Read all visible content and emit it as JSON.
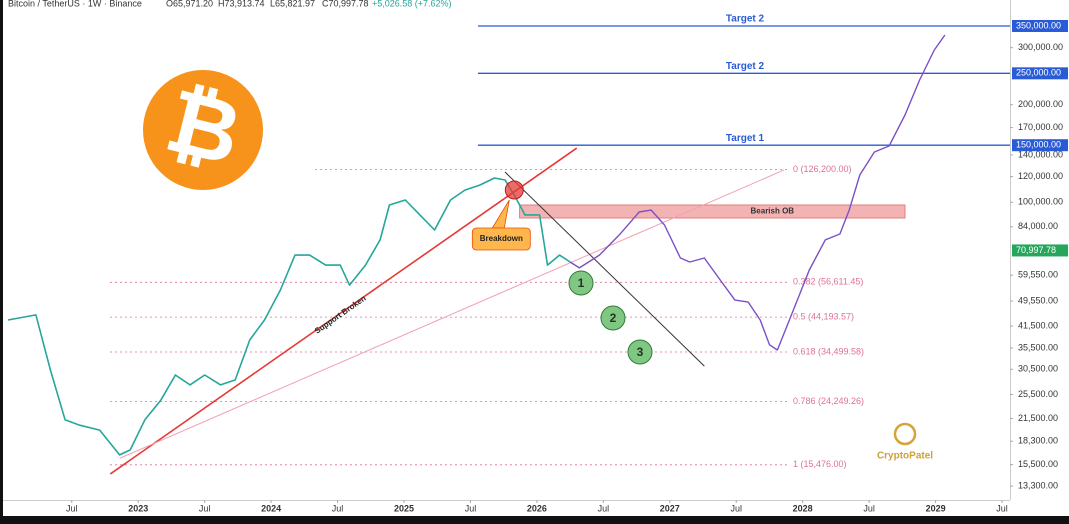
{
  "chart_data": {
    "type": "line",
    "header": {
      "symbol": "Bitcoin / TetherUS · 1W · Binance",
      "open": "O65,971.20",
      "high": "H73,913.74",
      "low": "L65,821.97",
      "close": "C70,997.78",
      "change": "+5,026.58 (+7.62%)"
    },
    "log_scale": true,
    "xlim": [
      2021.96,
      2029.56
    ],
    "ylim": [
      12050,
      421000
    ],
    "xticks": [
      {
        "value": 2022.5,
        "label": "Jul"
      },
      2023,
      {
        "value": 2023.5,
        "label": "Jul"
      },
      2024,
      {
        "value": 2024.5,
        "label": "Jul"
      },
      2025,
      {
        "value": 2025.5,
        "label": "Jul"
      },
      2026,
      {
        "value": 2026.5,
        "label": "Jul"
      },
      2027,
      {
        "value": 2027.5,
        "label": "Jul"
      },
      2028,
      {
        "value": 2028.5,
        "label": "Jul"
      },
      2029,
      {
        "value": 2029.5,
        "label": "Jul"
      }
    ],
    "yticks": [
      {
        "value": 300000,
        "label": "300,000.00"
      },
      {
        "value": 200000,
        "label": "200,000.00"
      },
      {
        "value": 170000,
        "label": "170,000.00"
      },
      {
        "value": 140000,
        "label": "140,000.00"
      },
      {
        "value": 120000,
        "label": "120,000.00"
      },
      {
        "value": 100000,
        "label": "100,000.00"
      },
      {
        "value": 84000,
        "label": "84,000.00"
      },
      {
        "value": 59550,
        "label": "59,550.00"
      },
      {
        "value": 49550,
        "label": "49,550.00"
      },
      {
        "value": 41500,
        "label": "41,500.00"
      },
      {
        "value": 35500,
        "label": "35,500.00"
      },
      {
        "value": 30500,
        "label": "30,500.00"
      },
      {
        "value": 25500,
        "label": "25,500.00"
      },
      {
        "value": 21500,
        "label": "21,500.00"
      },
      {
        "value": 18300,
        "label": "18,300.00"
      },
      {
        "value": 15500,
        "label": "15,500.00"
      },
      {
        "value": 13300,
        "label": "13,300.00"
      }
    ],
    "series": [
      {
        "color": "#26a69a",
        "x": [
          2022.02,
          2022.23,
          2022.34,
          2022.45,
          2022.56,
          2022.71,
          2022.86,
          2022.94,
          2023.05,
          2023.17,
          2023.28,
          2023.39,
          2023.5,
          2023.62,
          2023.73,
          2023.84,
          2023.95,
          2024.07,
          2024.18,
          2024.29,
          2024.41,
          2024.52,
          2024.59,
          2024.71,
          2024.82,
          2024.89,
          2025.01,
          2025.12,
          2025.23,
          2025.35,
          2025.46,
          2025.57,
          2025.68,
          2025.76,
          2025.83,
          2025.91,
          2026.02,
          2026.08,
          2026.17,
          2026.25
        ],
        "values": [
          43300,
          44900,
          30300,
          21300,
          20500,
          19800,
          16600,
          17200,
          21300,
          24500,
          29300,
          27300,
          29300,
          27300,
          28300,
          37600,
          43300,
          53600,
          68700,
          68700,
          64000,
          64000,
          55500,
          64000,
          76500,
          98100,
          101600,
          91400,
          82100,
          101600,
          109100,
          113000,
          118800,
          117100,
          105300,
          91400,
          91400,
          64000,
          68700,
          65400
        ]
      },
      {
        "color": "#7b4fc9",
        "x": [
          2026.25,
          2026.32,
          2026.47,
          2026.62,
          2026.77,
          2026.86,
          2026.96,
          2027.08,
          2027.15,
          2027.26,
          2027.38,
          2027.49,
          2027.59,
          2027.68,
          2027.75,
          2027.81,
          2027.9,
          2028.05,
          2028.17,
          2028.28,
          2028.35,
          2028.43,
          2028.54,
          2028.65,
          2028.77,
          2028.88,
          2028.99,
          2029.07
        ],
        "values": [
          65400,
          62700,
          68700,
          79300,
          93300,
          94600,
          85100,
          67300,
          65400,
          67300,
          57500,
          49900,
          49200,
          43300,
          36300,
          35000,
          43300,
          61800,
          76500,
          79800,
          94600,
          121400,
          142900,
          149200,
          185900,
          238400,
          295000,
          328300
        ]
      }
    ],
    "targets": [
      {
        "name": "Target 2",
        "value": 350000,
        "label": "350,000.00"
      },
      {
        "name": "Target 2",
        "value": 250000,
        "label": "250,000.00"
      },
      {
        "name": "Target 1",
        "value": 150000,
        "label": "150,000.00"
      }
    ],
    "target_color": "#2a5bd7",
    "fib_levels": [
      {
        "value": 126200,
        "label": "0 (126,200.00)"
      },
      {
        "value": 56611.45,
        "label": "0.382 (56,611.45)"
      },
      {
        "value": 44193.57,
        "label": "0.5 (44,193.57)"
      },
      {
        "value": 34499.58,
        "label": "0.618 (34,499.58)"
      },
      {
        "value": 24249.26,
        "label": "0.786 (24,249.26)"
      },
      {
        "value": 15476,
        "label": "1 (15,476.00)"
      }
    ],
    "fib_color": "#e0709a",
    "current_price": {
      "value": 70997.78,
      "label": "70,997.78",
      "color": "#26a65b"
    },
    "bearish_ob": {
      "label": "Bearish OB",
      "x": [
        2025.87,
        2028.77
      ],
      "values": [
        89400,
        98100
      ]
    },
    "trend_lines": [
      {
        "color": "#e53935",
        "x": [
          2022.79,
          2026.3
        ],
        "values": [
          14500,
          147000
        ]
      },
      {
        "color": "#f2a0b4",
        "x": [
          2022.86,
          2027.86
        ],
        "values": [
          16200,
          125800
        ]
      },
      {
        "color": "#333333",
        "x": [
          2025.76,
          2027.26
        ],
        "values": [
          124000,
          31200
        ]
      }
    ],
    "breakdown": {
      "label": "Breakdown",
      "x": 2025.83,
      "value": 109100
    },
    "support_label": "Support Broken",
    "waves": [
      "1",
      "2",
      "3"
    ],
    "logo_symbol": "₿",
    "watermark": "CryptoPatel"
  }
}
